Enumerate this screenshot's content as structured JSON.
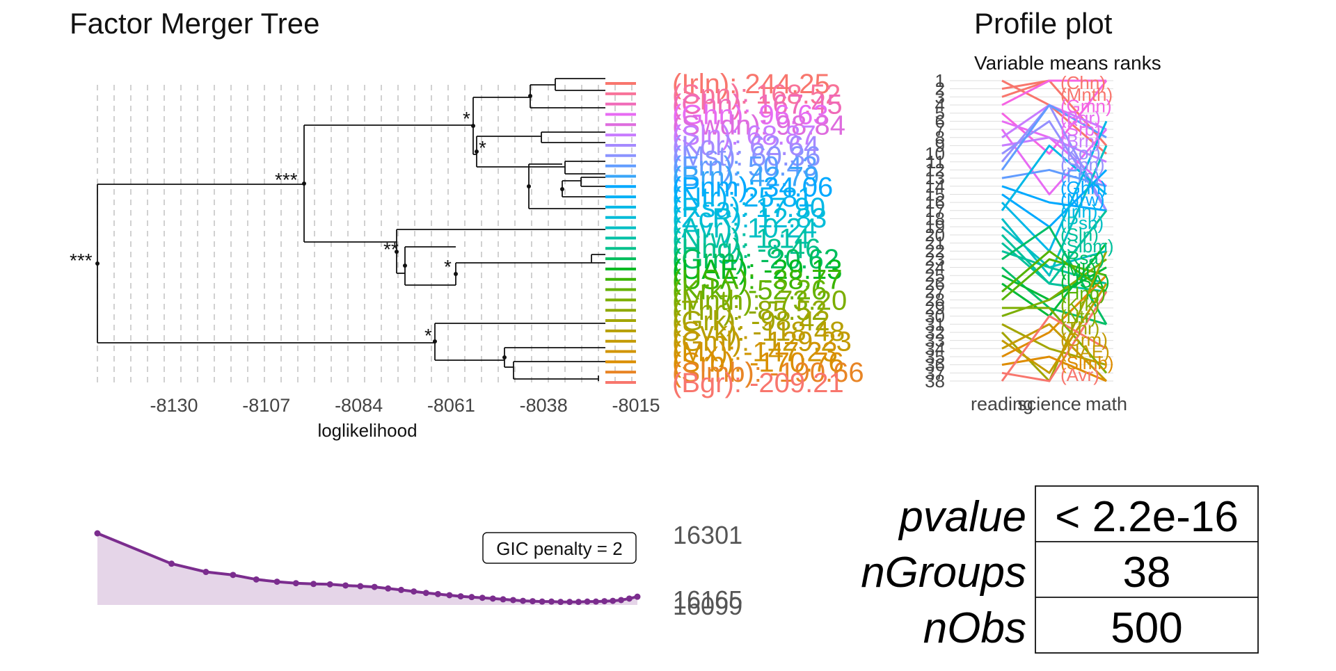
{
  "chart_data": [
    {
      "type": "dendrogram",
      "title": "Factor Merger Tree",
      "xlabel": "loglikelihood",
      "x_ticks": [
        -8130,
        -8107,
        -8084,
        -8061,
        -8038,
        -8015
      ],
      "x_range": [
        -8140,
        -8015
      ],
      "significance_marks": [
        {
          "stars": "***",
          "x": -8138
        },
        {
          "stars": "***",
          "x": -8111
        },
        {
          "stars": "*",
          "x": -8056
        },
        {
          "stars": "*",
          "x": -8053
        },
        {
          "stars": "**",
          "x": -8070
        },
        {
          "stars": "*",
          "x": -8059
        },
        {
          "stars": "*",
          "x": -8062
        }
      ],
      "leaf_labels": [
        {
          "text": "(Irln): 244.25",
          "color": "#f8766d"
        },
        {
          "text": "(Spn): 168.52",
          "color": "#f87399"
        },
        {
          "text": "(Chn): 167.45",
          "color": "#f06ab8"
        },
        {
          "text": "(Ghn): 96.63",
          "color": "#e76bf3"
        },
        {
          "text": "(Swdn): 98.84",
          "color": "#de6cde"
        },
        {
          "text": "(Sln): 68.87",
          "color": "#c77cff"
        },
        {
          "text": "(Kor): 62.64",
          "color": "#a58aff"
        },
        {
          "text": "(Mst): 60.36",
          "color": "#8b93ff"
        },
        {
          "text": "(Frn): 50.43",
          "color": "#619cff"
        },
        {
          "text": "(Brn): 42.79",
          "color": "#39a6f8"
        },
        {
          "text": "(Pnm): 34.06",
          "color": "#00a9ff"
        },
        {
          "text": "(Ntr): 25.81",
          "color": "#00b0f6"
        },
        {
          "text": "(Rsa): 17.90",
          "color": "#00b8e7"
        },
        {
          "text": "(ZcR): 12.83",
          "color": "#00bcd8"
        },
        {
          "text": "(Avr): 10.24",
          "color": "#00bfc4"
        },
        {
          "text": "(Nrw): 1.14",
          "color": "#00c0a6"
        },
        {
          "text": "(Hng): -8.46",
          "color": "#00c08b"
        },
        {
          "text": "(Grm): -20.62",
          "color": "#00bd5c"
        },
        {
          "text": "(UAE): -29.13",
          "color": "#00b81f"
        },
        {
          "text": "(USA): -38.77",
          "color": "#3ab400"
        },
        {
          "text": "(Krk): -52.26",
          "color": "#64b200"
        },
        {
          "text": "(Mnth): -73.20",
          "color": "#7cae00"
        },
        {
          "text": "(Thr): -85.52",
          "color": "#8fa800"
        },
        {
          "text": "(Grk): -98.42",
          "color": "#a3a500"
        },
        {
          "text": "(Svk): -118.48",
          "color": "#b79f00"
        },
        {
          "text": "(Gml): -129.23",
          "color": "#c49a00"
        },
        {
          "text": "(Mx): -147.23",
          "color": "#d19400"
        },
        {
          "text": "(Srb): -170.76",
          "color": "#db8e00"
        },
        {
          "text": "(Slmb): -190.66",
          "color": "#e88526"
        },
        {
          "text": "(Bgr): -209.21",
          "color": "#f8766d"
        }
      ]
    },
    {
      "type": "line",
      "title": "Profile plot",
      "subtitle": "Variable means ranks",
      "categories": [
        "reading",
        "science",
        "math"
      ],
      "y_ticks": [
        1,
        2,
        3,
        4,
        5,
        6,
        7,
        8,
        9,
        10,
        11,
        12,
        13,
        14,
        15,
        16,
        17,
        18,
        19,
        20,
        21,
        22,
        23,
        24,
        25,
        26,
        27,
        28,
        29,
        30,
        31,
        32,
        33,
        34,
        35,
        36,
        37,
        38
      ],
      "ylim": [
        1,
        38
      ],
      "end_labels": [
        "(Chn)",
        "(Mnth)",
        "(Gmn)",
        "(Bgr)",
        "(Srb)",
        "(Brn)",
        "(Kor)",
        "(Spn)",
        "(Frn)",
        "(Ghn)",
        "(Nrw)",
        "(Irln)",
        "(Psb)",
        "(Sln)",
        "(Slbm)",
        "(Rsa)",
        "(Mlt)",
        "(USA)",
        "(Hng)",
        "(Krk)",
        "(Ntr)",
        "(Thr)",
        "(Grm)",
        "(UAE)",
        "(Slmb)",
        "(Avr)"
      ]
    },
    {
      "type": "area",
      "annotation": "GIC penalty = 2",
      "y_labels": [
        "16301",
        "16165",
        "16099"
      ],
      "values": [
        16301,
        16220,
        16198,
        16190,
        16178,
        16172,
        16168,
        16166,
        16165,
        16162,
        16160,
        16158,
        16154,
        16150,
        16146,
        16142,
        16139,
        16136,
        16133,
        16131,
        16129,
        16127,
        16125,
        16123,
        16121,
        16120,
        16119,
        16119,
        16118,
        16118,
        16118,
        16119,
        16119,
        16120,
        16121,
        16123,
        16127,
        16132
      ],
      "color": "#7b2d8e"
    }
  ],
  "stats_table": [
    {
      "key": "pvalue",
      "value": "< 2.2e-16"
    },
    {
      "key": "nGroups",
      "value": "38"
    },
    {
      "key": "nObs",
      "value": "500"
    }
  ]
}
